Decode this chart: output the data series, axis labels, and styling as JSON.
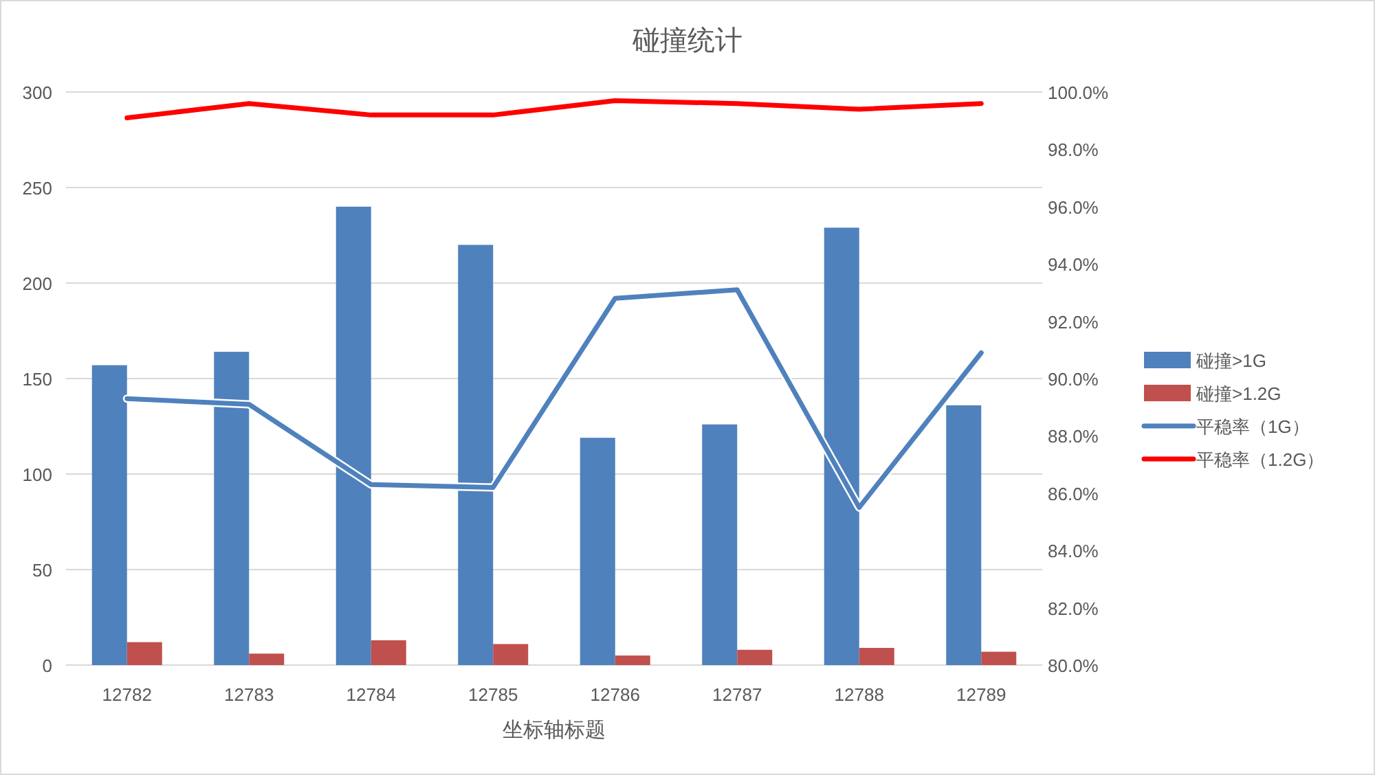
{
  "chart_data": {
    "type": "bar",
    "title": "碰撞统计",
    "xlabel": "坐标轴标题",
    "categories": [
      "12782",
      "12783",
      "12784",
      "12785",
      "12786",
      "12787",
      "12788",
      "12789"
    ],
    "series": [
      {
        "name": "碰撞>1G",
        "color": "#4f81bd",
        "values": [
          157,
          164,
          240,
          220,
          119,
          126,
          229,
          136
        ]
      },
      {
        "name": "碰撞>1.2G",
        "color": "#c0504d",
        "values": [
          12,
          6,
          13,
          11,
          5,
          8,
          9,
          7
        ]
      },
      {
        "name": "平稳率（1G）",
        "type": "line",
        "axis": "y2",
        "color": "#4f81bd",
        "values": [
          89.3,
          89.1,
          86.3,
          86.2,
          92.8,
          93.1,
          85.5,
          90.9
        ]
      },
      {
        "name": "平稳率（1.2G）",
        "type": "line",
        "axis": "y2",
        "color": "#ff0000",
        "values": [
          99.1,
          99.6,
          99.2,
          99.2,
          99.7,
          99.6,
          99.4,
          99.6
        ]
      }
    ],
    "ylim": [
      0,
      300
    ],
    "yticks": [
      0,
      50,
      100,
      150,
      200,
      250,
      300
    ],
    "y2lim": [
      80,
      100
    ],
    "y2ticks": [
      {
        "value": 80,
        "label": "80.0%"
      },
      {
        "value": 82,
        "label": "82.0%"
      },
      {
        "value": 84,
        "label": "84.0%"
      },
      {
        "value": 86,
        "label": "86.0%"
      },
      {
        "value": 88,
        "label": "88.0%"
      },
      {
        "value": 90,
        "label": "90.0%"
      },
      {
        "value": 92,
        "label": "92.0%"
      },
      {
        "value": 94,
        "label": "94.0%"
      },
      {
        "value": 96,
        "label": "96.0%"
      },
      {
        "value": 98,
        "label": "98.0%"
      },
      {
        "value": 100,
        "label": "100.0%"
      }
    ],
    "grid": "y",
    "legend": "right"
  }
}
